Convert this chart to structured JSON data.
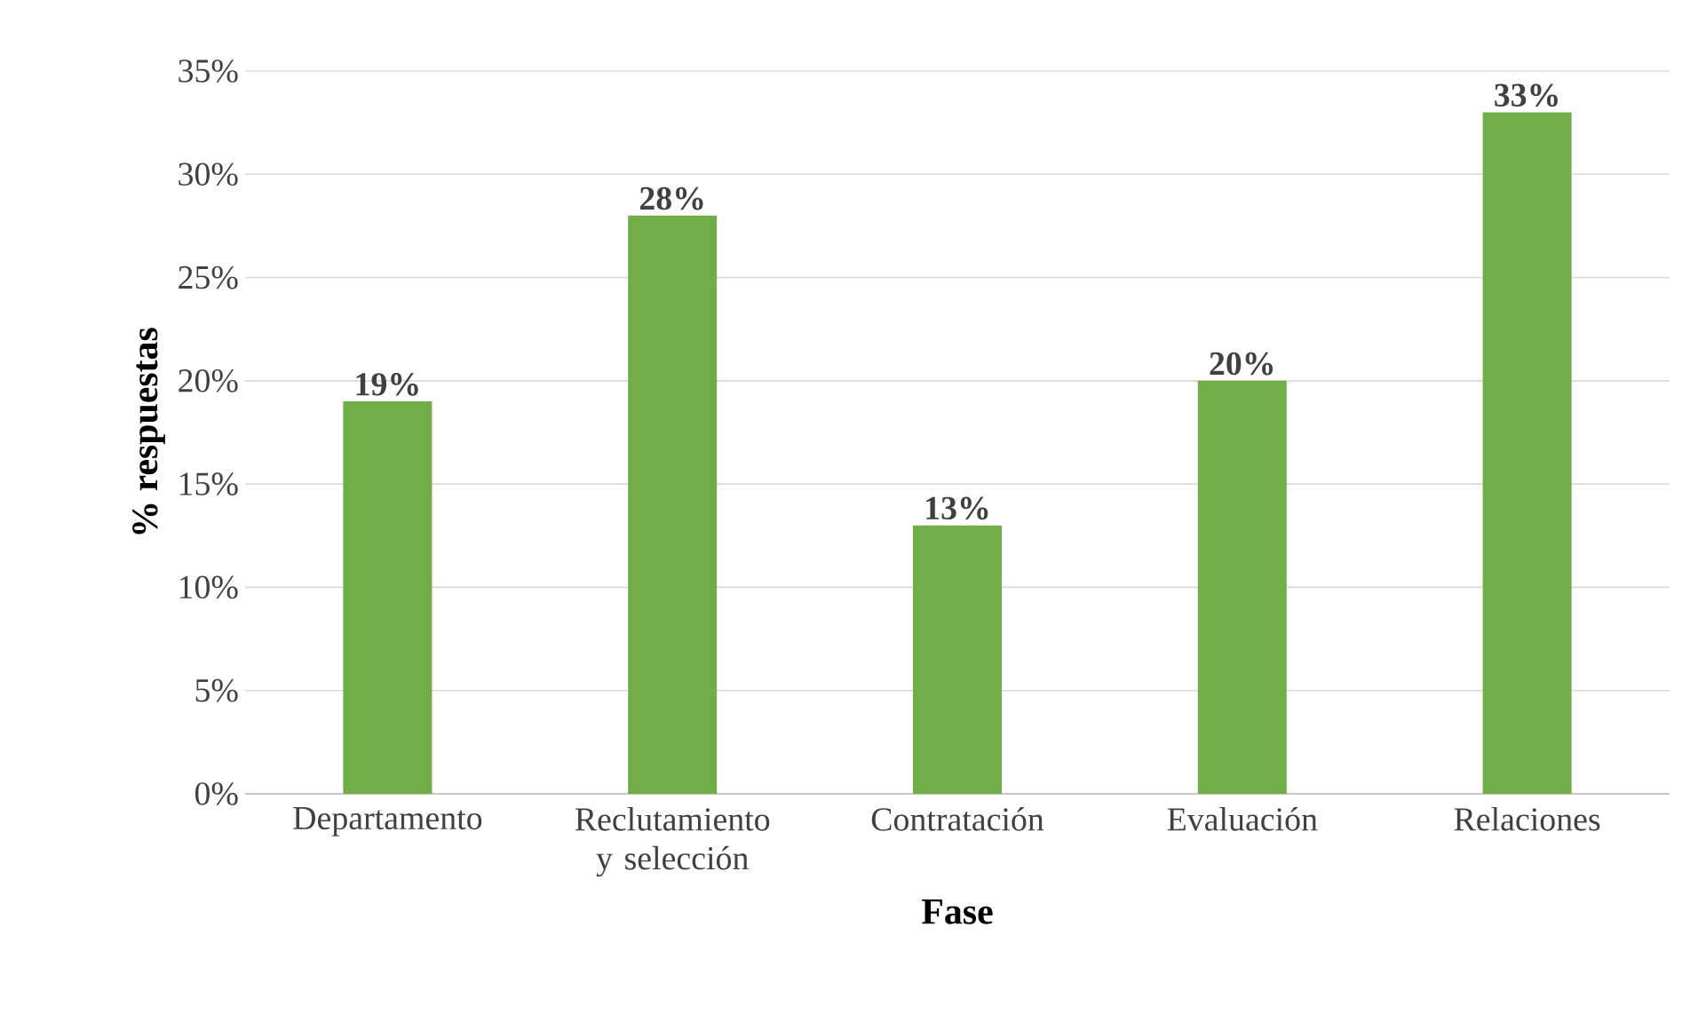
{
  "chart_data": {
    "type": "bar",
    "xlabel": "Fase",
    "ylabel": "% respuestas",
    "categories": [
      "Departamento",
      "Reclutamiento y selección",
      "Contratación",
      "Evaluación",
      "Relaciones"
    ],
    "values": [
      19,
      28,
      13,
      20,
      33
    ],
    "value_labels": [
      "19%",
      "28%",
      "13%",
      "20%",
      "33%"
    ],
    "color": "#70ad47",
    "ylim": [
      0,
      35
    ],
    "yticks": [
      {
        "value": 0,
        "label": "0%"
      },
      {
        "value": 5,
        "label": "5%"
      },
      {
        "value": 10,
        "label": "10%"
      },
      {
        "value": 15,
        "label": "15%"
      },
      {
        "value": 20,
        "label": "20%"
      },
      {
        "value": 25,
        "label": "25%"
      },
      {
        "value": 30,
        "label": "30%"
      },
      {
        "value": 35,
        "label": "35%"
      }
    ],
    "grid": "y"
  }
}
